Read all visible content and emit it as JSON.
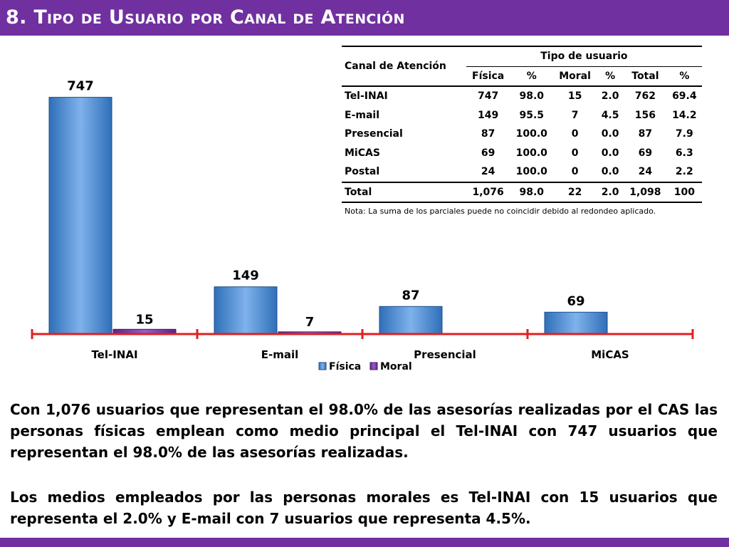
{
  "header": {
    "title": "8. Tipo de Usuario por Canal de Atención",
    "color": "#7030a0"
  },
  "chart_data": {
    "type": "bar",
    "categories": [
      "Tel-INAI",
      "E-mail",
      "Presencial",
      "MiCAS"
    ],
    "series": [
      {
        "name": "Física",
        "values": [
          747,
          149,
          87,
          69
        ],
        "color": "#4a90d9"
      },
      {
        "name": "Moral",
        "values": [
          15,
          7,
          0,
          0
        ],
        "color": "#7030a0"
      }
    ],
    "data_labels": [
      [
        "747",
        "15"
      ],
      [
        "149",
        "7"
      ],
      [
        "87",
        ""
      ],
      [
        "69",
        ""
      ]
    ],
    "title": "",
    "xlabel": "",
    "ylabel": "",
    "ylim": [
      0,
      800
    ],
    "grid": false,
    "legend": "bottom",
    "axis_color": "#e02020"
  },
  "table": {
    "header_col": "Canal de Atención",
    "header_group": "Tipo de usuario",
    "subheaders": [
      "Física",
      "%",
      "Moral",
      "%",
      "Total",
      "%"
    ],
    "rows": [
      [
        "Tel-INAI",
        "747",
        "98.0",
        "15",
        "2.0",
        "762",
        "69.4"
      ],
      [
        "E-mail",
        "149",
        "95.5",
        "7",
        "4.5",
        "156",
        "14.2"
      ],
      [
        "Presencial",
        "87",
        "100.0",
        "0",
        "0.0",
        "87",
        "7.9"
      ],
      [
        "MiCAS",
        "69",
        "100.0",
        "0",
        "0.0",
        "69",
        "6.3"
      ],
      [
        "Postal",
        "24",
        "100.0",
        "0",
        "0.0",
        "24",
        "2.2"
      ]
    ],
    "total": [
      "Total",
      "1,076",
      "98.0",
      "22",
      "2.0",
      "1,098",
      "100"
    ],
    "note": "Nota: La suma de los parciales puede no coincidir debido al redondeo aplicado."
  },
  "text": {
    "para1": "Con 1,076 usuarios que representan el 98.0% de las asesorías realizadas por el CAS las personas físicas emplean como medio principal el Tel-INAI con 747 usuarios que representan el 98.0% de las asesorías realizadas.",
    "para2": "Los medios empleados por las personas morales es Tel-INAI con 15 usuarios que representa el 2.0% y  E-mail con 7 usuarios que representa 4.5%."
  }
}
